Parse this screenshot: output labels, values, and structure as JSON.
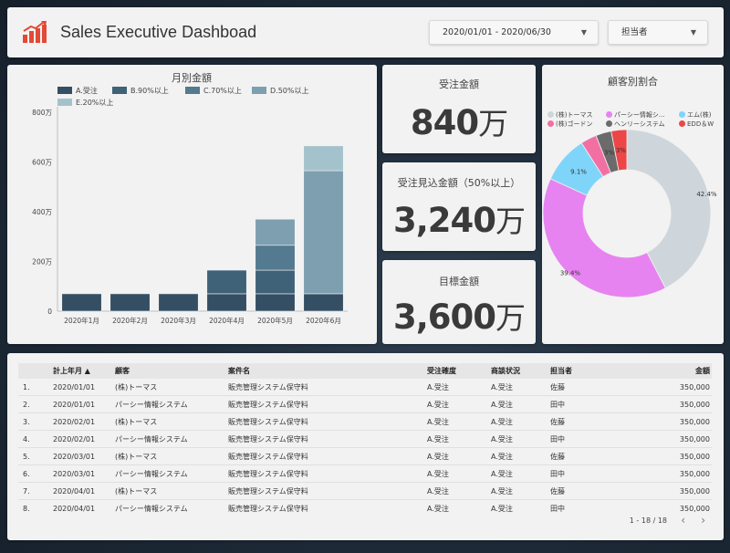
{
  "header": {
    "title": "Sales Executive Dashboad",
    "date_range": "2020/01/01 - 2020/06/30",
    "rep_filter": "担当者"
  },
  "kpis": [
    {
      "label": "受注金額",
      "value": "840",
      "unit": "万"
    },
    {
      "label": "受注見込金額（50%以上）",
      "value": "3,240",
      "unit": "万"
    },
    {
      "label": "目標金額",
      "value": "3,600",
      "unit": "万"
    }
  ],
  "donut": {
    "title": "顧客別割合",
    "legend": [
      {
        "label": "(株)トーマス",
        "color": "#cfd6db"
      },
      {
        "label": "パーシー情報シ...",
        "color": "#e783f0"
      },
      {
        "label": "エム(株)",
        "color": "#7fd4f9"
      },
      {
        "label": "(株)ゴードン",
        "color": "#f26fa3"
      },
      {
        "label": "ヘンリーシステム",
        "color": "#6b6b6b"
      },
      {
        "label": "EDD＆W",
        "color": "#ec4646"
      }
    ],
    "slices": [
      {
        "label": "42.4%",
        "value": 42.4,
        "color": "#cfd6db"
      },
      {
        "label": "39.4%",
        "value": 39.4,
        "color": "#e783f0"
      },
      {
        "label": "9.1%",
        "value": 9.1,
        "color": "#7fd4f9"
      },
      {
        "label": "",
        "value": 3.1,
        "color": "#f26fa3"
      },
      {
        "label": "3%",
        "value": 3.0,
        "color": "#6b6b6b"
      },
      {
        "label": "3%",
        "value": 3.0,
        "color": "#ec4646"
      }
    ]
  },
  "chart_data": {
    "type": "bar",
    "title": "月別金額",
    "categories": [
      "2020年1月",
      "2020年2月",
      "2020年3月",
      "2020年4月",
      "2020年5月",
      "2020年6月"
    ],
    "yticks": [
      "0",
      "200万",
      "400万",
      "600万",
      "800万"
    ],
    "ylim": [
      0,
      800
    ],
    "stacked": true,
    "series": [
      {
        "name": "A.受注",
        "color": "#344e63",
        "values": [
          70,
          70,
          70,
          70,
          70,
          70
        ]
      },
      {
        "name": "B.90%以上",
        "color": "#3f6279",
        "values": [
          0,
          0,
          0,
          95,
          95,
          0
        ]
      },
      {
        "name": "C.70%以上",
        "color": "#537a8e",
        "values": [
          0,
          0,
          0,
          0,
          100,
          0
        ]
      },
      {
        "name": "D.50%以上",
        "color": "#7d9fb0",
        "values": [
          0,
          0,
          0,
          0,
          105,
          495
        ]
      },
      {
        "name": "E.20%以上",
        "color": "#a4c2cc",
        "values": [
          0,
          0,
          0,
          0,
          0,
          100
        ]
      }
    ]
  },
  "table": {
    "headers": [
      "",
      "計上年月 ▲",
      "顧客",
      "案件名",
      "受注確度",
      "商談状況",
      "担当者",
      "金額"
    ],
    "rows": [
      [
        "1.",
        "2020/01/01",
        "(株)トーマス",
        "販売管理システム保守料",
        "A.受注",
        "A.受注",
        "佐藤",
        "350,000"
      ],
      [
        "2.",
        "2020/01/01",
        "パーシー情報システム",
        "販売管理システム保守料",
        "A.受注",
        "A.受注",
        "田中",
        "350,000"
      ],
      [
        "3.",
        "2020/02/01",
        "(株)トーマス",
        "販売管理システム保守料",
        "A.受注",
        "A.受注",
        "佐藤",
        "350,000"
      ],
      [
        "4.",
        "2020/02/01",
        "パーシー情報システム",
        "販売管理システム保守料",
        "A.受注",
        "A.受注",
        "田中",
        "350,000"
      ],
      [
        "5.",
        "2020/03/01",
        "(株)トーマス",
        "販売管理システム保守料",
        "A.受注",
        "A.受注",
        "佐藤",
        "350,000"
      ],
      [
        "6.",
        "2020/03/01",
        "パーシー情報システム",
        "販売管理システム保守料",
        "A.受注",
        "A.受注",
        "田中",
        "350,000"
      ],
      [
        "7.",
        "2020/04/01",
        "(株)トーマス",
        "販売管理システム保守料",
        "A.受注",
        "A.受注",
        "佐藤",
        "350,000"
      ],
      [
        "8.",
        "2020/04/01",
        "パーシー情報システム",
        "販売管理システム保守料",
        "A.受注",
        "A.受注",
        "田中",
        "350,000"
      ]
    ],
    "pager": "1 - 18 / 18"
  }
}
